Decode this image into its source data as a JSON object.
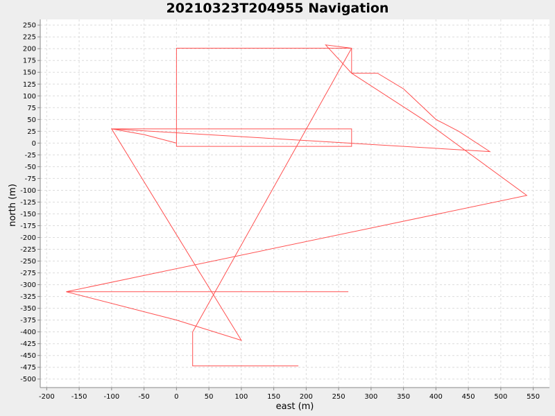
{
  "chart_data": {
    "type": "line",
    "title": "20210323T204955 Navigation",
    "xlabel": "east (m)",
    "ylabel": "north (m)",
    "xlim": [
      -210,
      575
    ],
    "ylim": [
      -518,
      262
    ],
    "xticks": [
      -200,
      -150,
      -100,
      -50,
      0,
      50,
      100,
      150,
      200,
      250,
      300,
      350,
      400,
      450,
      500,
      550
    ],
    "yticks": [
      250,
      225,
      200,
      175,
      150,
      125,
      100,
      75,
      50,
      25,
      0,
      -25,
      -50,
      -75,
      -100,
      -125,
      -150,
      -175,
      -200,
      -225,
      -250,
      -275,
      -300,
      -325,
      -350,
      -375,
      -400,
      -425,
      -450,
      -475,
      -500
    ],
    "grid": true,
    "color": "#ff5050",
    "series": [
      {
        "x": [
          0,
          -50,
          -100,
          270,
          270,
          0,
          0,
          270,
          270,
          310,
          350,
          400,
          435,
          483,
          -100,
          100,
          0,
          -170,
          265,
          -170,
          540,
          380,
          270,
          230,
          270,
          25,
          25,
          188
        ],
        "y": [
          0,
          18,
          30,
          30,
          -7,
          -7,
          201,
          201,
          148,
          148,
          115,
          50,
          25,
          -18,
          30,
          -418,
          -375,
          -315,
          -315,
          -315,
          -111,
          50,
          148,
          208,
          201,
          -400,
          -472,
          -472
        ]
      }
    ]
  }
}
